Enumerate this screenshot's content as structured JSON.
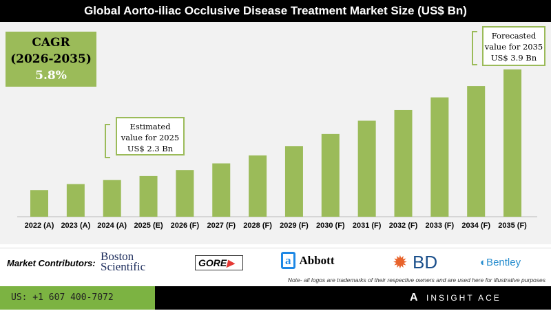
{
  "title": "Global Aorto-iliac Occlusive Disease Treatment Market Size (US$ Bn)",
  "cagr": {
    "label": "CAGR",
    "period": "(2026-2035)",
    "value": "5.8%"
  },
  "callouts": {
    "estimated": [
      "Estimated",
      "value for 2025",
      "US$ 2.3 Bn"
    ],
    "forecasted": [
      "Forecasted",
      "value for 2035",
      "US$ 3.9 Bn"
    ]
  },
  "colors": {
    "bar": "#9bbb59",
    "title_bg": "#000000",
    "footer_green": "#7cb342"
  },
  "chart_data": {
    "type": "bar",
    "title": "Global Aorto-iliac Occlusive Disease Treatment Market Size (US$ Bn)",
    "categories": [
      "2022 (A)",
      "2023 (A)",
      "2024 (A)",
      "2025 (E)",
      "2026 (F)",
      "2027 (F)",
      "2028 (F)",
      "2029 (F)",
      "2030 (F)",
      "2031 (F)",
      "2032 (F)",
      "2033 (F)",
      "2034 (F)",
      "2035 (F)"
    ],
    "values": [
      2.09,
      2.18,
      2.24,
      2.3,
      2.39,
      2.49,
      2.61,
      2.75,
      2.93,
      3.13,
      3.29,
      3.48,
      3.65,
      3.9
    ],
    "xlabel": "",
    "ylabel": "",
    "grid": false
  },
  "contributors": {
    "label": "Market Contributors:",
    "logos": [
      "Boston Scientific",
      "GORE",
      "Abbott",
      "BD",
      "Bentley"
    ]
  },
  "note": "Note- all logos are trademarks of their respective owners and are used here for illustrative purposes",
  "footer": {
    "phone": "US: +1 607 400-7072",
    "brand": "INSIGHT ACE ANALYTIC"
  }
}
